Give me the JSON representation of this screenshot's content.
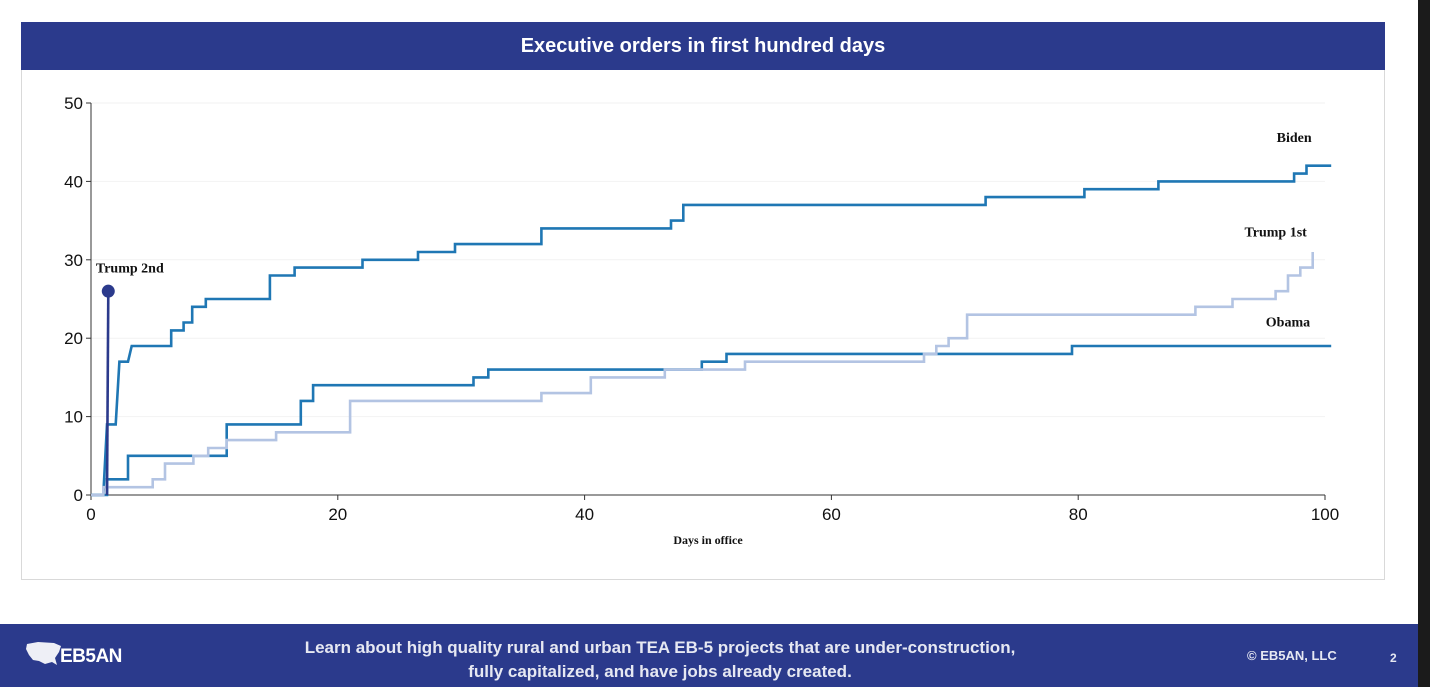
{
  "header": {
    "title": "Executive orders in first hundred days"
  },
  "chart_data": {
    "type": "line",
    "step": true,
    "title": "Executive orders in first hundred days",
    "xlabel": "Days in office",
    "ylabel": "",
    "xlim": [
      0,
      100
    ],
    "ylim": [
      0,
      50
    ],
    "xticks": [
      0,
      20,
      40,
      60,
      80,
      100
    ],
    "yticks": [
      0,
      10,
      20,
      30,
      40,
      50
    ],
    "grid": "horizontal",
    "series": [
      {
        "name": "Biden",
        "color": "#1f77b4",
        "points": [
          [
            0,
            0
          ],
          [
            1,
            0
          ],
          [
            1.3,
            9
          ],
          [
            2,
            9
          ],
          [
            2.3,
            17
          ],
          [
            3,
            17
          ],
          [
            3.3,
            19
          ],
          [
            6.5,
            19
          ],
          [
            6.5,
            21
          ],
          [
            7.5,
            21
          ],
          [
            7.5,
            22
          ],
          [
            8.2,
            22
          ],
          [
            8.2,
            24
          ],
          [
            9.3,
            24
          ],
          [
            9.3,
            25
          ],
          [
            14.5,
            25
          ],
          [
            14.5,
            28
          ],
          [
            16.5,
            28
          ],
          [
            16.5,
            29
          ],
          [
            22,
            29
          ],
          [
            22,
            30
          ],
          [
            26.5,
            30
          ],
          [
            26.5,
            31
          ],
          [
            29.5,
            31
          ],
          [
            29.5,
            32
          ],
          [
            36.5,
            32
          ],
          [
            36.5,
            34
          ],
          [
            47,
            34
          ],
          [
            47,
            35
          ],
          [
            48,
            35
          ],
          [
            48,
            37
          ],
          [
            72.5,
            37
          ],
          [
            72.5,
            38
          ],
          [
            80.5,
            38
          ],
          [
            80.5,
            39
          ],
          [
            86.5,
            39
          ],
          [
            86.5,
            40
          ],
          [
            97.5,
            40
          ],
          [
            97.5,
            41
          ],
          [
            98.5,
            41
          ],
          [
            98.5,
            42
          ],
          [
            100.5,
            42
          ]
        ]
      },
      {
        "name": "Obama",
        "color": "#1f77b4",
        "points": [
          [
            0,
            0
          ],
          [
            1.3,
            0
          ],
          [
            1.3,
            2
          ],
          [
            3,
            2
          ],
          [
            3,
            5
          ],
          [
            11,
            5
          ],
          [
            11,
            9
          ],
          [
            17,
            9
          ],
          [
            17,
            12
          ],
          [
            18,
            12
          ],
          [
            18,
            14
          ],
          [
            31,
            14
          ],
          [
            31,
            15
          ],
          [
            32.2,
            15
          ],
          [
            32.2,
            16
          ],
          [
            49.5,
            16
          ],
          [
            49.5,
            17
          ],
          [
            51.5,
            17
          ],
          [
            51.5,
            18
          ],
          [
            79.5,
            18
          ],
          [
            79.5,
            19
          ],
          [
            100.5,
            19
          ]
        ]
      },
      {
        "name": "Trump 1st",
        "color": "#b3c4e3",
        "points": [
          [
            0,
            0
          ],
          [
            1,
            0
          ],
          [
            1,
            1
          ],
          [
            5,
            1
          ],
          [
            5,
            2
          ],
          [
            6,
            2
          ],
          [
            6,
            4
          ],
          [
            8.3,
            4
          ],
          [
            8.3,
            5
          ],
          [
            9.5,
            5
          ],
          [
            9.5,
            6
          ],
          [
            11,
            6
          ],
          [
            11,
            7
          ],
          [
            15,
            7
          ],
          [
            15,
            8
          ],
          [
            21,
            8
          ],
          [
            21,
            12
          ],
          [
            36.5,
            12
          ],
          [
            36.5,
            13
          ],
          [
            40.5,
            13
          ],
          [
            40.5,
            15
          ],
          [
            46.5,
            15
          ],
          [
            46.5,
            16
          ],
          [
            53,
            16
          ],
          [
            53,
            17
          ],
          [
            67.5,
            17
          ],
          [
            67.5,
            18
          ],
          [
            68.5,
            18
          ],
          [
            68.5,
            19
          ],
          [
            69.5,
            19
          ],
          [
            69.5,
            20
          ],
          [
            71,
            20
          ],
          [
            71,
            23
          ],
          [
            89.5,
            23
          ],
          [
            89.5,
            24
          ],
          [
            92.5,
            24
          ],
          [
            92.5,
            25
          ],
          [
            96,
            25
          ],
          [
            96,
            26
          ],
          [
            97,
            26
          ],
          [
            97,
            28
          ],
          [
            98,
            28
          ],
          [
            98,
            29
          ],
          [
            99,
            29
          ],
          [
            99,
            31
          ]
        ]
      },
      {
        "name": "Trump 2nd",
        "color": "#2b3a8c",
        "points": [
          [
            1.3,
            0
          ],
          [
            1.4,
            26
          ]
        ]
      }
    ],
    "annotations": [
      {
        "text": "Biden",
        "x": 97.5,
        "y": 45
      },
      {
        "text": "Trump 1st",
        "x": 96,
        "y": 33
      },
      {
        "text": "Obama",
        "x": 97,
        "y": 21.5
      },
      {
        "text": "Trump 2nd",
        "x": 0.4,
        "y": 28.4
      }
    ]
  },
  "footer": {
    "logo_text": "EB5AN",
    "message_line1": "Learn about high quality rural and urban TEA EB-5 projects that are under-construction,",
    "message_line2": "fully capitalized, and have jobs already created.",
    "copyright": "© EB5AN, LLC",
    "page_number": "2"
  }
}
